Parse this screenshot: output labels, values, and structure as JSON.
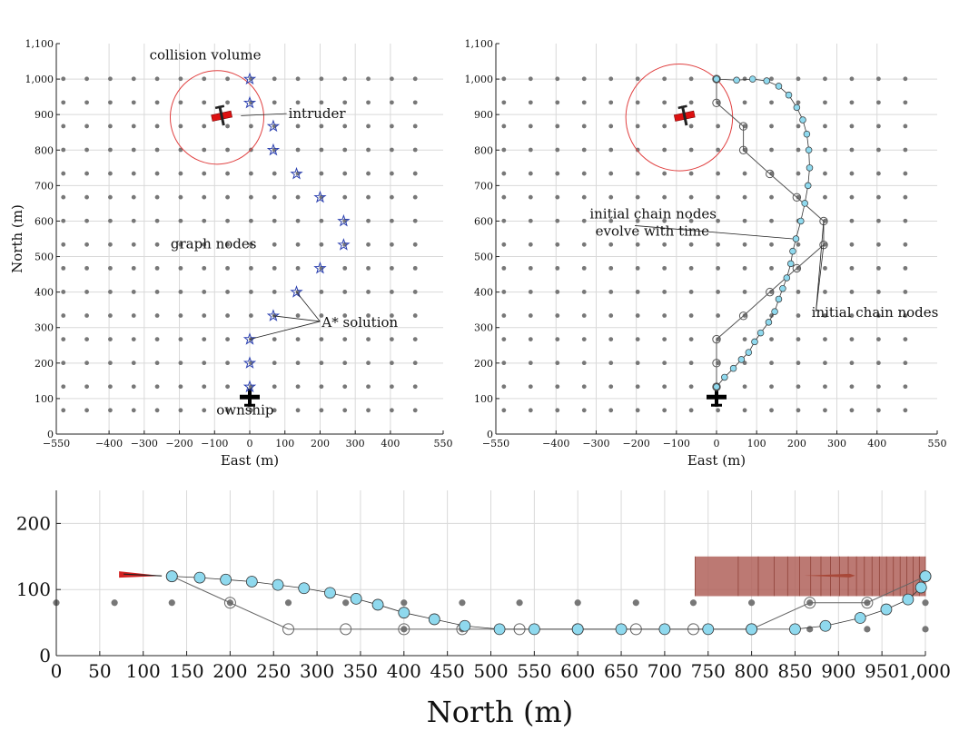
{
  "chart_data": [
    {
      "type": "scatter",
      "xlabel": "East (m)",
      "ylabel": "North (m)",
      "xlim": [
        -550,
        550
      ],
      "ylim": [
        0,
        1100
      ],
      "xticks": [
        -550,
        -400,
        -300,
        -200,
        -100,
        0,
        100,
        200,
        300,
        400,
        550
      ],
      "yticks": [
        0,
        100,
        200,
        300,
        400,
        500,
        600,
        700,
        800,
        900,
        1000,
        1100
      ],
      "ytick_labels": [
        "0",
        "100",
        "200",
        "300",
        "400",
        "500",
        "600",
        "700",
        "800",
        "900",
        "1,000",
        "1,100"
      ],
      "grid": true,
      "graph_nodes": {
        "x_start": -530,
        "x_step": 66.7,
        "x_count": 16,
        "y_start": 67,
        "y_step": 66.7,
        "y_count": 15,
        "color": "#777777"
      },
      "collision_volume": {
        "cx": -93,
        "cy": 892,
        "r": 133,
        "color": "#e04040"
      },
      "intruder": {
        "x": -80,
        "y": 897,
        "color": "#dd1111"
      },
      "ownship": {
        "x": 0,
        "y": 103,
        "color": "#000000"
      },
      "astar_solution": {
        "color": "#2a3fb0",
        "points": [
          [
            0,
            133
          ],
          [
            0,
            200
          ],
          [
            0,
            267
          ],
          [
            67,
            333
          ],
          [
            133,
            400
          ],
          [
            200,
            467
          ],
          [
            267,
            533
          ],
          [
            267,
            600
          ],
          [
            200,
            667
          ],
          [
            133,
            733
          ],
          [
            67,
            800
          ],
          [
            67,
            867
          ],
          [
            0,
            933
          ],
          [
            0,
            1000
          ]
        ]
      },
      "annotations": [
        {
          "text": "collision volume",
          "x": -285,
          "y": 1055
        },
        {
          "text": "intruder",
          "x": 110,
          "y": 890,
          "target": [
            -25,
            897
          ]
        },
        {
          "text": "graph nodes",
          "x": -225,
          "y": 523
        },
        {
          "text": "A* solution",
          "x": 205,
          "y": 302,
          "targets": [
            [
              67,
              333
            ],
            [
              133,
              400
            ],
            [
              0,
              267
            ]
          ]
        },
        {
          "text": "ownship",
          "x": -95,
          "y": 55
        }
      ]
    },
    {
      "type": "line",
      "xlabel": "East (m)",
      "ylabel": "",
      "xlim": [
        -550,
        550
      ],
      "ylim": [
        0,
        1100
      ],
      "xticks": [
        -550,
        -400,
        -300,
        -200,
        -100,
        0,
        100,
        200,
        300,
        400,
        550
      ],
      "yticks": [
        0,
        100,
        200,
        300,
        400,
        500,
        600,
        700,
        800,
        900,
        1000,
        1100
      ],
      "ytick_labels": [
        "0",
        "100",
        "200",
        "300",
        "400",
        "500",
        "600",
        "700",
        "800",
        "900",
        "1,000",
        "1,100"
      ],
      "grid": true,
      "graph_nodes": {
        "x_start": -530,
        "x_step": 66.7,
        "x_count": 16,
        "y_start": 67,
        "y_step": 66.7,
        "y_count": 15,
        "color": "#777777"
      },
      "collision_volume": {
        "cx": -93,
        "cy": 892,
        "r": 133,
        "color": "#e04040"
      },
      "intruder": {
        "x": -80,
        "y": 897,
        "color": "#dd1111"
      },
      "ownship": {
        "x": 0,
        "y": 103,
        "color": "#000000"
      },
      "series": [
        {
          "style": "initial_chain",
          "color": "#555555",
          "points": [
            [
              0,
              133
            ],
            [
              0,
              200
            ],
            [
              0,
              267
            ],
            [
              67,
              333
            ],
            [
              133,
              400
            ],
            [
              200,
              467
            ],
            [
              267,
              533
            ],
            [
              267,
              600
            ],
            [
              200,
              667
            ],
            [
              133,
              733
            ],
            [
              67,
              800
            ],
            [
              67,
              867
            ],
            [
              0,
              933
            ],
            [
              0,
              1000
            ]
          ]
        },
        {
          "style": "evolved_chain",
          "color": "#8fd9ee",
          "points": [
            [
              0,
              133
            ],
            [
              20,
              160
            ],
            [
              42,
              185
            ],
            [
              62,
              210
            ],
            [
              80,
              230
            ],
            [
              95,
              260
            ],
            [
              110,
              285
            ],
            [
              130,
              315
            ],
            [
              145,
              345
            ],
            [
              155,
              380
            ],
            [
              165,
              410
            ],
            [
              175,
              440
            ],
            [
              185,
              480
            ],
            [
              190,
              515
            ],
            [
              198,
              550
            ],
            [
              210,
              600
            ],
            [
              220,
              650
            ],
            [
              228,
              700
            ],
            [
              232,
              750
            ],
            [
              230,
              800
            ],
            [
              225,
              845
            ],
            [
              215,
              885
            ],
            [
              200,
              920
            ],
            [
              180,
              955
            ],
            [
              155,
              980
            ],
            [
              125,
              995
            ],
            [
              90,
              1000
            ],
            [
              50,
              997
            ],
            [
              0,
              1000
            ]
          ]
        }
      ],
      "annotations": [
        {
          "lines": [
            "initial chain nodes",
            "evolve with time"
          ],
          "x": 0,
          "y": 600,
          "target": [
            190,
            550
          ]
        },
        {
          "text": "initial chain nodes",
          "x": 395,
          "y": 330,
          "targets": [
            [
              267,
              533
            ],
            [
              267,
              600
            ]
          ]
        }
      ]
    },
    {
      "type": "line",
      "xlabel": "North (m)",
      "ylabel": "",
      "xlim": [
        0,
        1000
      ],
      "ylim": [
        0,
        250
      ],
      "xticks": [
        0,
        50,
        100,
        150,
        200,
        250,
        300,
        350,
        400,
        450,
        500,
        550,
        600,
        650,
        700,
        750,
        800,
        850,
        900,
        950,
        1000
      ],
      "xtick_labels": [
        "0",
        "50",
        "100",
        "150",
        "200",
        "250",
        "300",
        "350",
        "400",
        "450",
        "500",
        "550",
        "600",
        "650",
        "700",
        "750",
        "800",
        "850",
        "900",
        "950",
        "1,000"
      ],
      "yticks": [
        0,
        100,
        200
      ],
      "grid": true,
      "graph_nodes_color": "#777777",
      "graph_nodes": [
        [
          0,
          80
        ],
        [
          67,
          80
        ],
        [
          133,
          80
        ],
        [
          200,
          80
        ],
        [
          267,
          80
        ],
        [
          333,
          80
        ],
        [
          400,
          80
        ],
        [
          467,
          80
        ],
        [
          533,
          80
        ],
        [
          600,
          80
        ],
        [
          667,
          80
        ],
        [
          733,
          80
        ],
        [
          800,
          80
        ],
        [
          867,
          80
        ],
        [
          933,
          80
        ],
        [
          1000,
          80
        ],
        [
          400,
          40
        ],
        [
          467,
          40
        ],
        [
          867,
          40
        ],
        [
          933,
          40
        ],
        [
          1000,
          40
        ]
      ],
      "intruder_volume": {
        "x0": 735,
        "x1": 1000,
        "y0": 90,
        "y1": 150,
        "color": "#b0625a"
      },
      "intruder": {
        "x": 890,
        "y": 121,
        "color": "#a84838"
      },
      "ownship": {
        "x": 90,
        "y": 122,
        "color": "#d22222"
      },
      "series": [
        {
          "style": "initial_chain",
          "color": "#666666",
          "points": [
            [
              133,
              120
            ],
            [
              200,
              80
            ],
            [
              267,
              40
            ],
            [
              333,
              40
            ],
            [
              400,
              40
            ],
            [
              467,
              40
            ],
            [
              533,
              40
            ],
            [
              600,
              40
            ],
            [
              667,
              40
            ],
            [
              733,
              40
            ],
            [
              800,
              40
            ],
            [
              867,
              80
            ],
            [
              933,
              80
            ],
            [
              1000,
              120
            ]
          ]
        },
        {
          "style": "evolved_chain",
          "color": "#8fd9ee",
          "points": [
            [
              133,
              120
            ],
            [
              165,
              118
            ],
            [
              195,
              115
            ],
            [
              225,
              112
            ],
            [
              255,
              107
            ],
            [
              285,
              102
            ],
            [
              315,
              95
            ],
            [
              345,
              86
            ],
            [
              370,
              77
            ],
            [
              400,
              65
            ],
            [
              435,
              55
            ],
            [
              470,
              45
            ],
            [
              510,
              40
            ],
            [
              550,
              40
            ],
            [
              600,
              40
            ],
            [
              650,
              40
            ],
            [
              700,
              40
            ],
            [
              750,
              40
            ],
            [
              800,
              40
            ],
            [
              850,
              40
            ],
            [
              885,
              45
            ],
            [
              925,
              57
            ],
            [
              955,
              70
            ],
            [
              980,
              85
            ],
            [
              995,
              103
            ],
            [
              1000,
              120
            ]
          ]
        }
      ]
    }
  ]
}
